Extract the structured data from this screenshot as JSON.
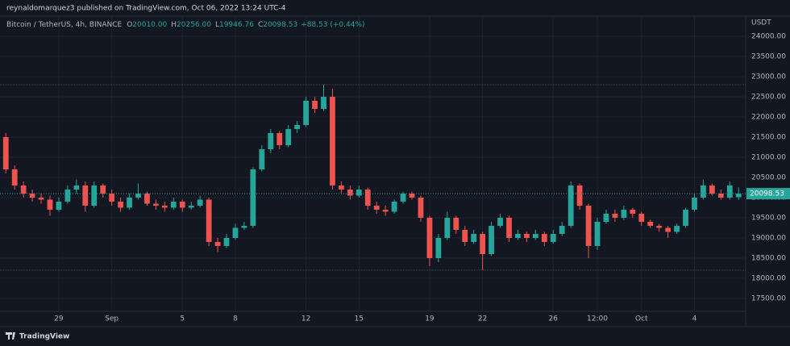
{
  "header": "reynaldomarquez3 published on TradingView.com, Oct 06, 2022 13:24 UTC-4",
  "footer": "TradingView",
  "chart_data": {
    "type": "candlestick",
    "symbol": "Bitcoin / TetherUS, 4h, BINANCE",
    "ohlc_legend": [
      {
        "key": "O",
        "text": "20010.00"
      },
      {
        "key": "H",
        "text": "20256.00"
      },
      {
        "key": "L",
        "text": "19946.76"
      },
      {
        "key": "C",
        "text": "20098.53"
      }
    ],
    "change": "+88.53 (+0.44%)",
    "y_unit": "USDT",
    "up_color": "#26a69a",
    "down_color": "#ef5350",
    "x": [
      0,
      0.5,
      1,
      1.5,
      2,
      2.5,
      3,
      3.5,
      4,
      4.5,
      5,
      5.5,
      6,
      6.5,
      7,
      7.5,
      8,
      8.5,
      9,
      9.5,
      10,
      10.5,
      11,
      11.5,
      12,
      12.5,
      13,
      13.5,
      14,
      14.5,
      15,
      15.5,
      16,
      16.5,
      17,
      17.5,
      18,
      18.5,
      19,
      19.5,
      20,
      20.5,
      21,
      21.5,
      22,
      22.5,
      23,
      23.5,
      24,
      24.5,
      25,
      25.5,
      26,
      26.5,
      27,
      27.5,
      28,
      28.5,
      29,
      29.5,
      30,
      30.5,
      31,
      31.5,
      32,
      32.5,
      33,
      33.5,
      34,
      34.5,
      35,
      35.5,
      36,
      36.5,
      37,
      37.5,
      38,
      38.5,
      39,
      39.5,
      40,
      40.5,
      41,
      41.5
    ],
    "open": [
      21500,
      20700,
      20300,
      20100,
      20000,
      19950,
      19700,
      19900,
      20200,
      20300,
      19800,
      20300,
      20100,
      19900,
      19750,
      20000,
      20100,
      19850,
      19800,
      19750,
      19900,
      19750,
      19800,
      19950,
      18900,
      18800,
      19000,
      19250,
      19300,
      20700,
      21200,
      21600,
      21300,
      21700,
      21800,
      22400,
      22200,
      22500,
      20300,
      20200,
      20050,
      20200,
      19800,
      19700,
      19650,
      19900,
      20100,
      20000,
      19500,
      18500,
      19000,
      19500,
      19200,
      18900,
      19100,
      18600,
      19300,
      19500,
      19000,
      19100,
      19000,
      19100,
      18900,
      19100,
      19300,
      20300,
      19800,
      18800,
      19400,
      19600,
      19500,
      19700,
      19600,
      19400,
      19300,
      19250,
      19150,
      19300,
      19700,
      20000,
      20300,
      20100,
      20000,
      20010
    ],
    "high": [
      21600,
      20800,
      20400,
      20200,
      20100,
      20050,
      20000,
      20300,
      20450,
      20400,
      20400,
      20350,
      20200,
      20000,
      20100,
      20350,
      20150,
      19950,
      19900,
      20000,
      19950,
      19900,
      20050,
      20000,
      19000,
      19100,
      19350,
      19400,
      20750,
      21300,
      21700,
      21650,
      21800,
      21900,
      22500,
      22500,
      22800,
      22700,
      20400,
      20300,
      20300,
      20250,
      19900,
      19800,
      19950,
      20150,
      20150,
      20050,
      19550,
      19100,
      19650,
      19550,
      19300,
      19200,
      19150,
      19400,
      19600,
      19550,
      19200,
      19150,
      19200,
      19150,
      19200,
      19400,
      20400,
      20350,
      19850,
      19500,
      19700,
      19700,
      19800,
      19750,
      19650,
      19450,
      19350,
      19300,
      19350,
      19750,
      20100,
      20450,
      20350,
      20200,
      20400,
      20256
    ],
    "low": [
      20600,
      20200,
      20000,
      19900,
      19850,
      19550,
      19650,
      19850,
      20100,
      19650,
      19750,
      20000,
      19800,
      19650,
      19700,
      19950,
      19800,
      19700,
      19650,
      19700,
      19650,
      19700,
      19750,
      18800,
      18650,
      18750,
      18950,
      19200,
      19250,
      20650,
      21100,
      21200,
      21250,
      21600,
      21750,
      22100,
      22150,
      20200,
      20100,
      19950,
      20000,
      19700,
      19600,
      19550,
      19600,
      19850,
      19950,
      19400,
      18300,
      18400,
      18950,
      19100,
      18800,
      18850,
      18200,
      18550,
      19250,
      18900,
      18950,
      18900,
      18950,
      18800,
      18850,
      19050,
      19250,
      19700,
      18500,
      18700,
      19350,
      19400,
      19450,
      19500,
      19300,
      19250,
      19150,
      19000,
      19100,
      19250,
      19650,
      19950,
      20050,
      19950,
      19950,
      19946.76
    ],
    "close": [
      20700,
      20300,
      20100,
      20000,
      19950,
      19700,
      19900,
      20200,
      20300,
      19800,
      20300,
      20100,
      19900,
      19750,
      20000,
      20100,
      19850,
      19800,
      19750,
      19900,
      19750,
      19800,
      19950,
      18900,
      18800,
      19000,
      19250,
      19300,
      20700,
      21200,
      21600,
      21300,
      21700,
      21800,
      22400,
      22200,
      22500,
      20300,
      20200,
      20050,
      20200,
      19800,
      19700,
      19650,
      19900,
      20100,
      20000,
      19500,
      18500,
      19000,
      19500,
      19200,
      18900,
      19100,
      18600,
      19300,
      19500,
      19000,
      19100,
      19000,
      19100,
      18900,
      19100,
      19300,
      20300,
      19800,
      18800,
      19400,
      19600,
      19500,
      19700,
      19600,
      19400,
      19300,
      19250,
      19150,
      19300,
      19700,
      20000,
      20300,
      20100,
      20000,
      20300,
      20098.53
    ],
    "xlim": [
      -0.33,
      41.9
    ],
    "xticks": [
      {
        "value": 3,
        "label": "29"
      },
      {
        "value": 6,
        "label": "Sep"
      },
      {
        "value": 10,
        "label": "5"
      },
      {
        "value": 13,
        "label": "8"
      },
      {
        "value": 17,
        "label": "12"
      },
      {
        "value": 20,
        "label": "15"
      },
      {
        "value": 24,
        "label": "19"
      },
      {
        "value": 27,
        "label": "22"
      },
      {
        "value": 31,
        "label": "26"
      },
      {
        "value": 33.5,
        "label": "12:00"
      },
      {
        "value": 36,
        "label": "Oct"
      },
      {
        "value": 39,
        "label": "4"
      }
    ],
    "ylim": [
      17180,
      24500
    ],
    "yticks": [
      {
        "value": 17500,
        "label": "17500.00"
      },
      {
        "value": 18000,
        "label": "18000.00"
      },
      {
        "value": 18500,
        "label": "18500.00"
      },
      {
        "value": 19000,
        "label": "19000.00"
      },
      {
        "value": 19500,
        "label": "19500.00"
      },
      {
        "value": 20000,
        "label": "20000.00"
      },
      {
        "value": 20500,
        "label": "20500.00"
      },
      {
        "value": 21000,
        "label": "21000.00"
      },
      {
        "value": 21500,
        "label": "21500.00"
      },
      {
        "value": 22000,
        "label": "22000.00"
      },
      {
        "value": 22500,
        "label": "22500.00"
      },
      {
        "value": 23000,
        "label": "23000.00"
      },
      {
        "value": 23500,
        "label": "23500.00"
      },
      {
        "value": 24000,
        "label": "24000.00"
      }
    ],
    "grid": true
  }
}
